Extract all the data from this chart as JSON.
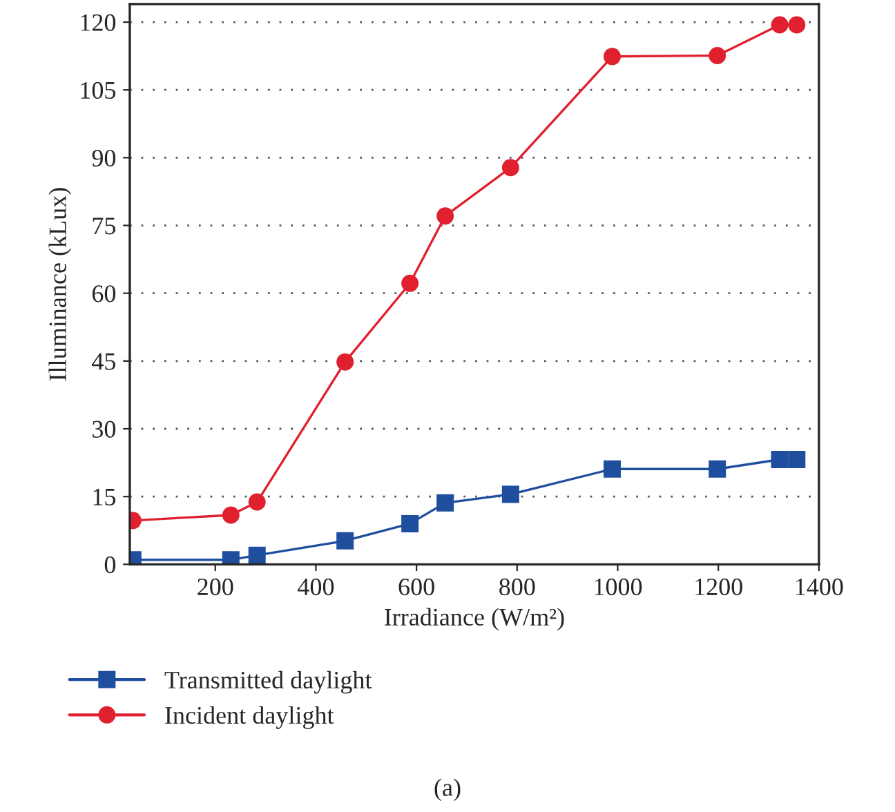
{
  "chart_data": {
    "type": "line",
    "xlabel": "Irradiance (W/m²)",
    "ylabel": "Illuminance (kLux)",
    "x": [
      36,
      231,
      283,
      458,
      587,
      657,
      787,
      989,
      1198,
      1322,
      1356
    ],
    "series": [
      {
        "name": "Transmitted daylight",
        "color": "#1f4e9e",
        "marker": "square",
        "values": [
          1.0,
          1.0,
          2.0,
          5.2,
          9.0,
          13.6,
          15.5,
          21.1,
          21.1,
          23.2,
          23.2
        ]
      },
      {
        "name": "Incident daylight",
        "color": "#e0202e",
        "marker": "circle",
        "values": [
          9.7,
          10.9,
          13.8,
          44.8,
          62.2,
          77.1,
          87.8,
          112.4,
          112.6,
          119.4,
          119.4
        ]
      }
    ],
    "xlim": [
      30,
      1400
    ],
    "xticks": [
      200,
      400,
      600,
      800,
      1000,
      1200,
      1400
    ],
    "ylim": [
      0,
      124
    ],
    "yticks": [
      0,
      15,
      30,
      45,
      60,
      75,
      90,
      105,
      120
    ],
    "grid": "y",
    "legend": "bottom",
    "line_style": "solid",
    "annotations": [
      "(a)"
    ]
  }
}
